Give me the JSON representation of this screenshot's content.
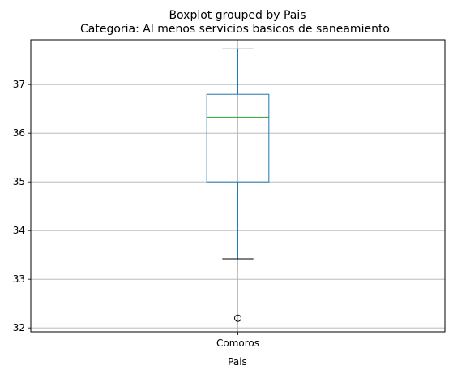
{
  "chart_data": {
    "type": "box",
    "title": "Boxplot grouped by Pais",
    "subtitle": "Categoria: Al menos servicios basicos de saneamiento",
    "xlabel": "Pais",
    "ylabel": "",
    "categories": [
      "Comoros"
    ],
    "boxes": [
      {
        "category": "Comoros",
        "whisker_low": 33.42,
        "q1": 35.0,
        "median": 36.33,
        "q3": 36.8,
        "whisker_high": 37.73,
        "outliers": [
          32.2
        ]
      }
    ],
    "ylim": [
      31.92,
      37.92
    ],
    "yticks": [
      32,
      33,
      34,
      35,
      36,
      37
    ],
    "grid": true,
    "colors": {
      "box": "#1f77b4",
      "median": "#2ca02c",
      "caps": "#000000",
      "grid": "#b0b0b0"
    }
  }
}
